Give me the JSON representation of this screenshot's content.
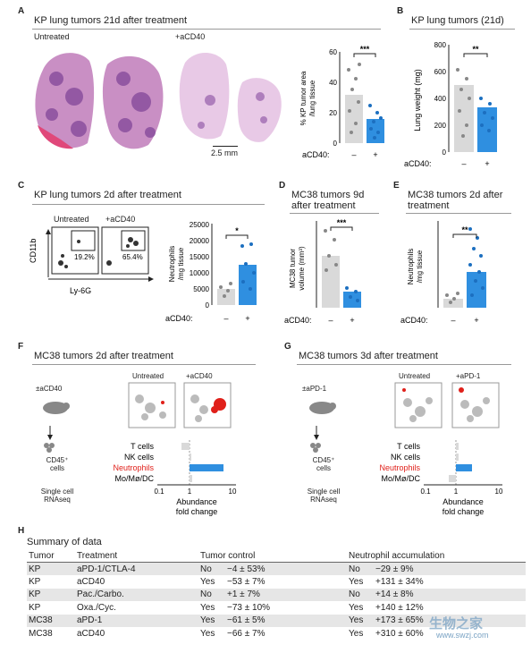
{
  "panelA": {
    "letter": "A",
    "title": "KP lung tumors 21d after treatment",
    "untreated": "Untreated",
    "treated": "+aCD40",
    "scale": "2.5 mm",
    "ylabel": "% KP tumor area /lung tissue",
    "sig": "***",
    "ticks": [
      "0",
      "20",
      "40",
      "60"
    ],
    "xlab": "aCD40:",
    "minus": "–",
    "plus": "+"
  },
  "panelB": {
    "letter": "B",
    "title": "KP lung tumors (21d)",
    "ylabel": "Lung weight (mg)",
    "sig": "**",
    "ticks": [
      "0",
      "200",
      "400",
      "600",
      "800"
    ],
    "xlab": "aCD40:",
    "minus": "–",
    "plus": "+"
  },
  "panelC": {
    "letter": "C",
    "title": "KP lung tumors 2d after treatment",
    "untreated": "Untreated",
    "treated": "+aCD40",
    "gate1": "19.2%",
    "gate2": "65.4%",
    "yaxis": "CD11b",
    "xaxis": "Ly-6G",
    "ylabel": "Neutrophils /mg tissue",
    "sig": "*",
    "ticks": [
      "0",
      "5000",
      "10000",
      "15000",
      "20000",
      "25000"
    ],
    "xlab": "aCD40:",
    "minus": "–",
    "plus": "+"
  },
  "panelD": {
    "letter": "D",
    "title": "MC38 tumors 9d after treatment",
    "ylabel": "MC38 tumor volume (mm³)",
    "sig": "***",
    "xlab": "aCD40:",
    "minus": "–",
    "plus": "+"
  },
  "panelE": {
    "letter": "E",
    "title": "MC38 tumors 2d after treatment",
    "ylabel": "Neutrophils /mg tissue",
    "sig": "**",
    "xlab": "aCD40:",
    "minus": "–",
    "plus": "+"
  },
  "panelF": {
    "letter": "F",
    "title": "MC38 tumors 2d after treatment",
    "treat": "±aCD40",
    "cells": "CD45⁺ cells",
    "seq": "Single cell RNAseq",
    "untreated": "Untreated",
    "treated": "+aCD40",
    "rows": [
      "T cells",
      "NK cells",
      "Neutrophils",
      "Mo/Mø/DC"
    ],
    "xlabel": "Abundance fold change",
    "xticks": [
      "0.1",
      "1",
      "10"
    ]
  },
  "panelG": {
    "letter": "G",
    "title": "MC38 tumors 3d after treatment",
    "treat": "±aPD-1",
    "cells": "CD45⁺ cells",
    "seq": "Single cell RNAseq",
    "untreated": "Untreated",
    "treated": "+aPD-1",
    "rows": [
      "T cells",
      "NK cells",
      "Neutrophils",
      "Mo/Mø/DC"
    ],
    "xlabel": "Abundance fold change",
    "xticks": [
      "0.1",
      "1",
      "10"
    ]
  },
  "panelH": {
    "letter": "H",
    "title": "Summary of data",
    "headers": [
      "Tumor",
      "Treatment",
      "Tumor control",
      "",
      "Neutrophil accumulation",
      ""
    ],
    "rows": [
      [
        "KP",
        "aPD-1/CTLA-4",
        "No",
        "−4 ± 53%",
        "No",
        "−29 ± 9%"
      ],
      [
        "KP",
        "aCD40",
        "Yes",
        "−53 ± 7%",
        "Yes",
        "+131 ± 34%"
      ],
      [
        "KP",
        "Pac./Carbo.",
        "No",
        "+1 ± 7%",
        "No",
        "+14 ± 8%"
      ],
      [
        "KP",
        "Oxa./Cyc.",
        "Yes",
        "−73 ± 10%",
        "Yes",
        "+140 ± 12%"
      ],
      [
        "MC38",
        "aPD-1",
        "Yes",
        "−61 ± 5%",
        "Yes",
        "+173 ± 65%"
      ],
      [
        "MC38",
        "aCD40",
        "Yes",
        "−66 ± 7%",
        "Yes",
        "+310 ± 60%"
      ]
    ]
  },
  "watermark": {
    "line1": "生物之家",
    "line2": "www.swzj.com"
  },
  "colors": {
    "blue": "#2f8fe0",
    "gray": "#d9d9d9",
    "red": "#e0201a",
    "he_pink": "#c98fc4",
    "he_purple": "#8a4f9e"
  },
  "chart_data": [
    {
      "type": "bar",
      "panel": "A",
      "categories": [
        "–",
        "+"
      ],
      "values": [
        32,
        16
      ],
      "ylim": [
        0,
        60
      ],
      "ylabel": "% KP tumor area /lung tissue"
    },
    {
      "type": "bar",
      "panel": "B",
      "categories": [
        "–",
        "+"
      ],
      "values": [
        500,
        330
      ],
      "ylim": [
        0,
        800
      ],
      "ylabel": "Lung weight (mg)"
    },
    {
      "type": "bar",
      "panel": "C",
      "categories": [
        "–",
        "+"
      ],
      "values": [
        5000,
        12500
      ],
      "ylim": [
        0,
        25000
      ],
      "ylabel": "Neutrophils /mg tissue"
    },
    {
      "type": "bar",
      "panel": "D",
      "categories": [
        "–",
        "+"
      ],
      "values": [
        0.7,
        0.25
      ],
      "ylim": [
        0,
        1
      ],
      "ylabel": "MC38 tumor volume (mm³)"
    },
    {
      "type": "bar",
      "panel": "E",
      "categories": [
        "–",
        "+"
      ],
      "values": [
        0.2,
        0.8
      ],
      "ylim": [
        0,
        2
      ],
      "ylabel": "Neutrophils /mg tissue"
    },
    {
      "type": "bar",
      "panel": "F",
      "orientation": "horizontal",
      "categories": [
        "T cells",
        "NK cells",
        "Neutrophils",
        "Mo/Mø/DC"
      ],
      "values": [
        0.8,
        1.05,
        4.5,
        1.1
      ],
      "xscale": "log",
      "xlim": [
        0.1,
        10
      ]
    },
    {
      "type": "bar",
      "panel": "G",
      "orientation": "horizontal",
      "categories": [
        "T cells",
        "NK cells",
        "Neutrophils",
        "Mo/Mø/DC"
      ],
      "values": [
        1.1,
        1.1,
        2.5,
        0.6
      ],
      "xscale": "log",
      "xlim": [
        0.1,
        10
      ]
    }
  ]
}
